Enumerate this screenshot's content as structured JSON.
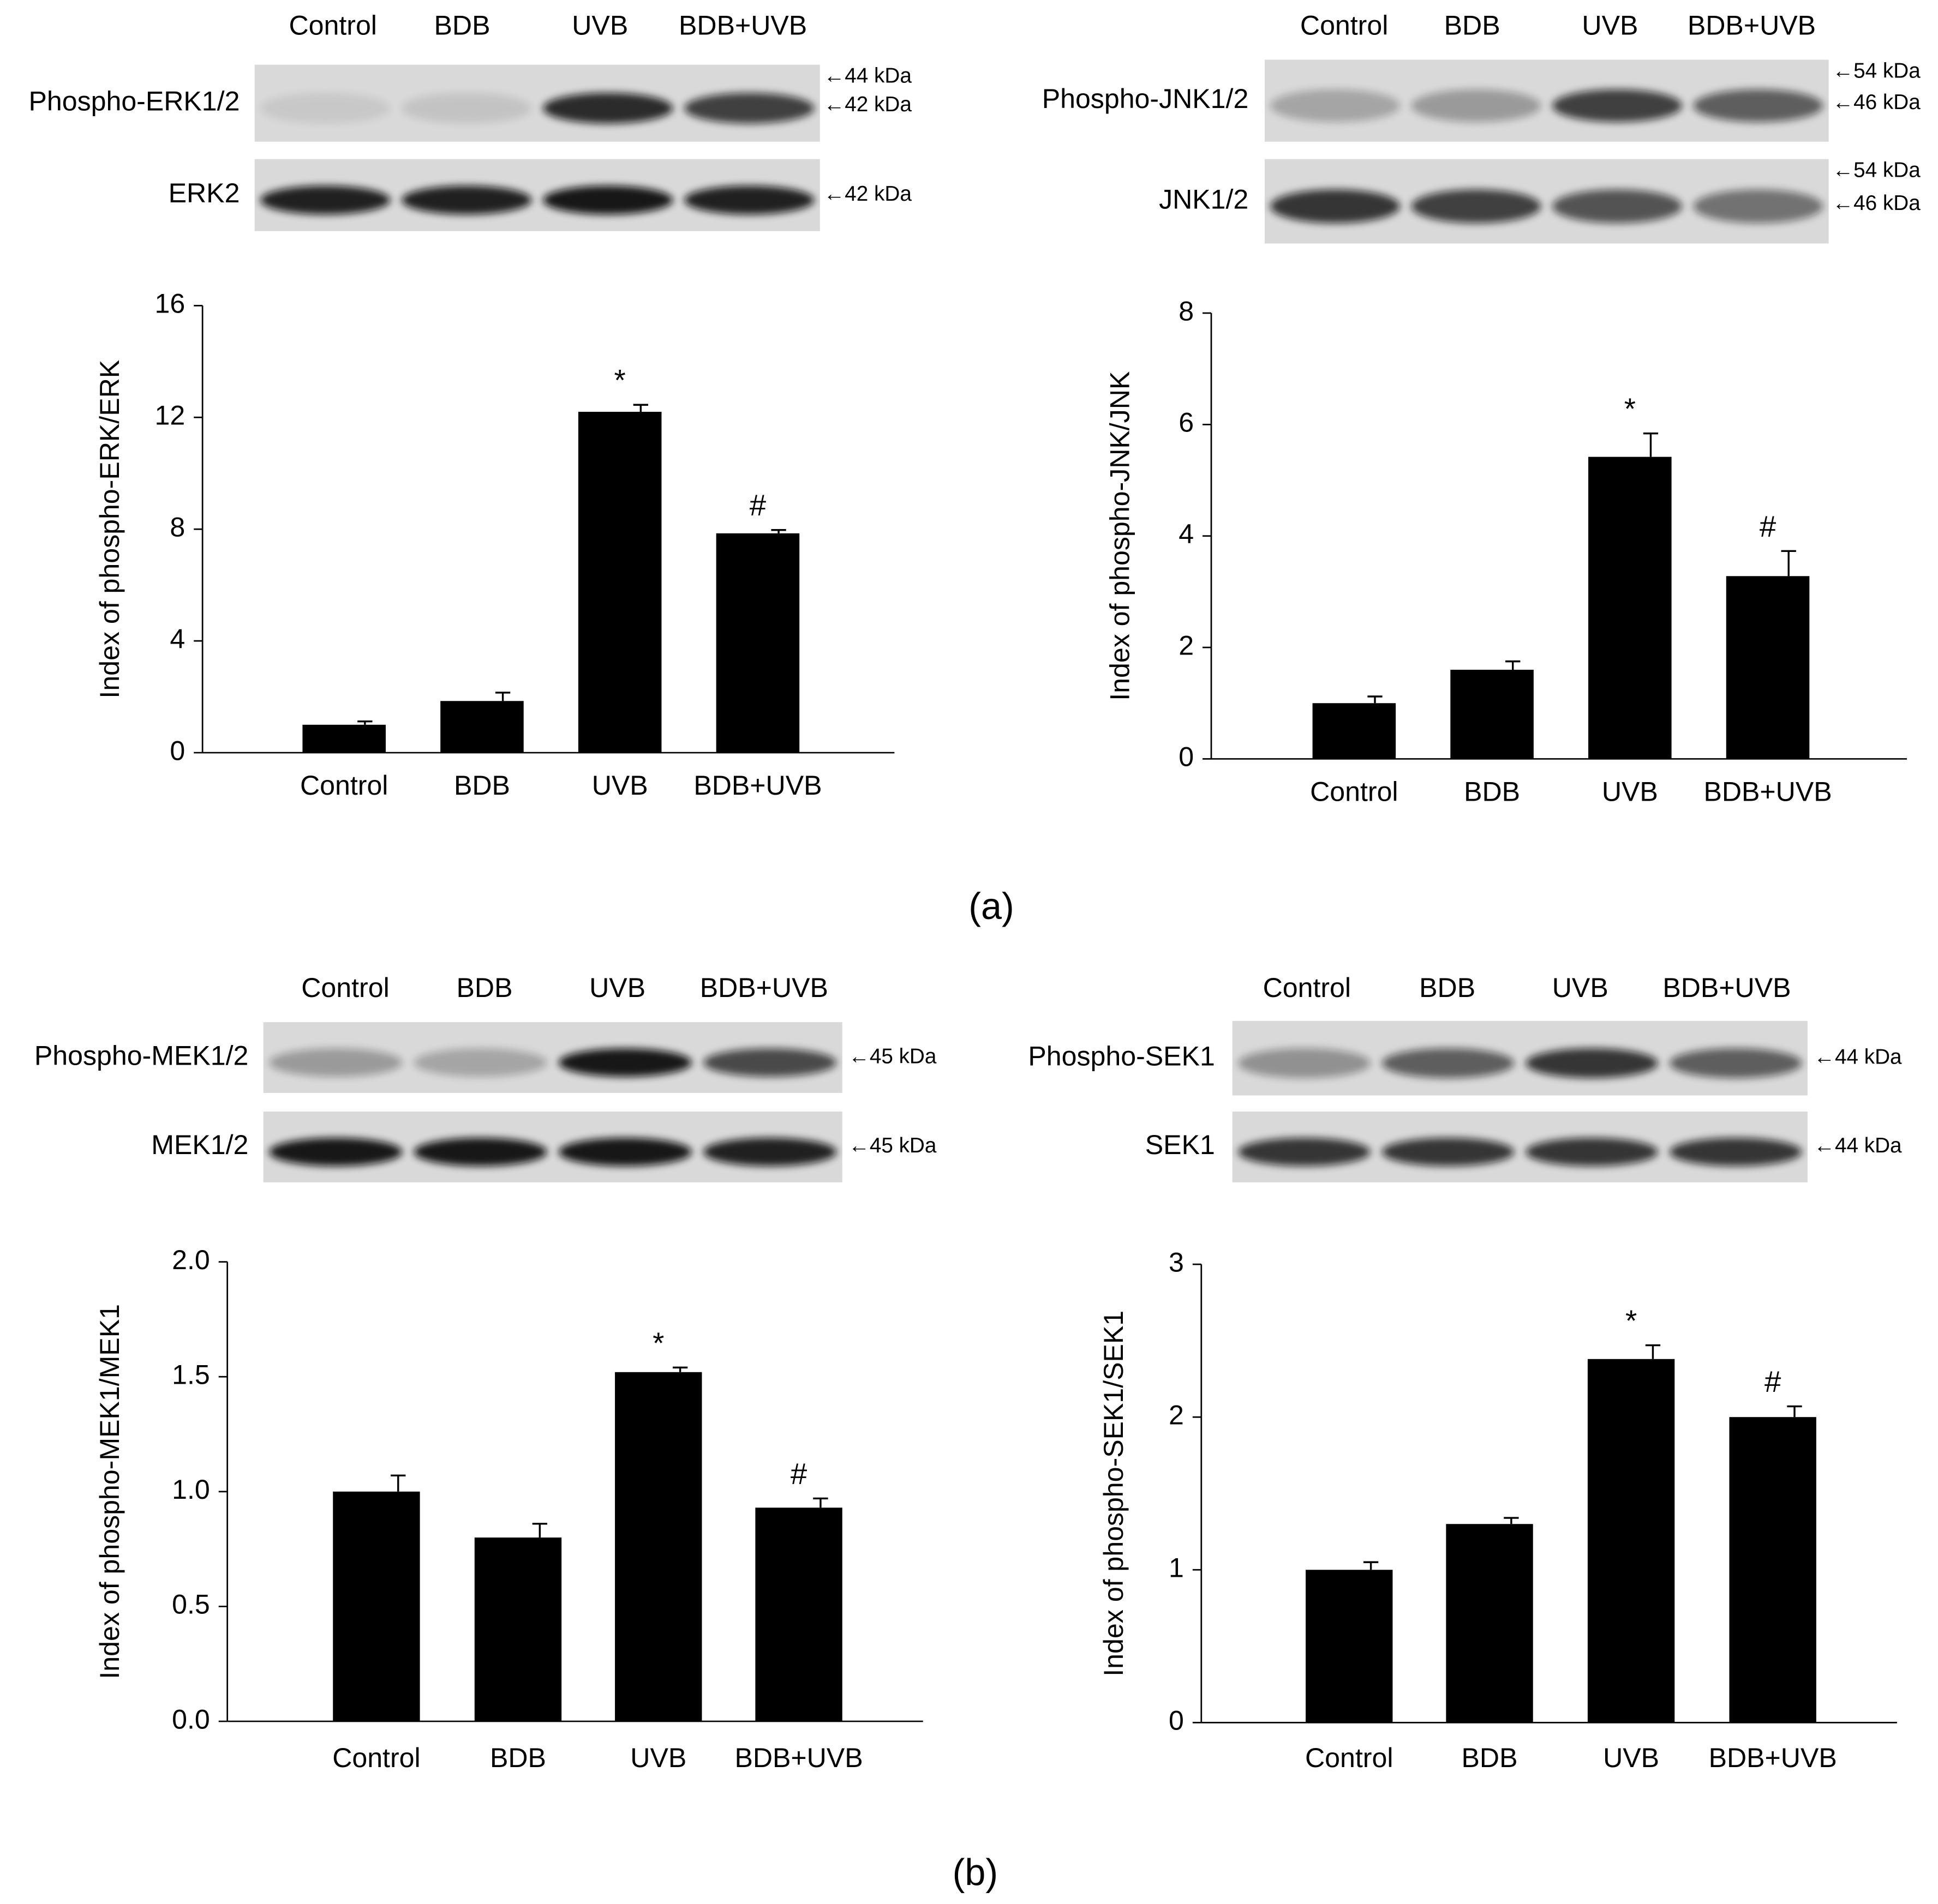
{
  "panel_labels": [
    "(a)",
    "(b)"
  ],
  "chart_data": [
    {
      "type": "bar",
      "ylabel": "Index of phospho-ERK/ERK",
      "categories": [
        "Control",
        "BDB",
        "UVB",
        "BDB+UVB"
      ],
      "values": [
        1.0,
        1.85,
        12.2,
        7.85
      ],
      "errors": [
        0.12,
        0.3,
        0.25,
        0.12
      ],
      "significance": [
        null,
        null,
        "*",
        "#"
      ],
      "color": "#000000",
      "ylim": [
        0,
        16
      ],
      "yticks": [
        0,
        4,
        8,
        12,
        16
      ],
      "blots": {
        "lanes": [
          "Control",
          "BDB",
          "UVB",
          "BDB+UVB"
        ],
        "rows": [
          {
            "label": "Phospho-ERK1/2",
            "markers": [
              "←44 kDa",
              "←42 kDa"
            ]
          },
          {
            "label": "ERK2",
            "markers": [
              "←42 kDa"
            ]
          }
        ]
      }
    },
    {
      "type": "bar",
      "ylabel": "Index of phospho-JNK/JNK",
      "categories": [
        "Control",
        "BDB",
        "UVB",
        "BDB+UVB"
      ],
      "values": [
        1.0,
        1.6,
        5.42,
        3.28
      ],
      "errors": [
        0.12,
        0.15,
        0.42,
        0.45
      ],
      "significance": [
        null,
        null,
        "*",
        "#"
      ],
      "color": "#000000",
      "ylim": [
        0,
        8
      ],
      "yticks": [
        0,
        2,
        4,
        6,
        8
      ],
      "blots": {
        "lanes": [
          "Control",
          "BDB",
          "UVB",
          "BDB+UVB"
        ],
        "rows": [
          {
            "label": "Phospho-JNK1/2",
            "markers": [
              "←54 kDa",
              "←46 kDa"
            ]
          },
          {
            "label": "JNK1/2",
            "markers": [
              "←54 kDa",
              "←46 kDa"
            ]
          }
        ]
      }
    },
    {
      "type": "bar",
      "ylabel": "Index of phospho-MEK1/MEK1",
      "categories": [
        "Control",
        "BDB",
        "UVB",
        "BDB+UVB"
      ],
      "values": [
        1.0,
        0.8,
        1.52,
        0.93
      ],
      "errors": [
        0.07,
        0.06,
        0.02,
        0.04
      ],
      "significance": [
        null,
        null,
        "*",
        "#"
      ],
      "color": "#000000",
      "ylim": [
        0,
        2
      ],
      "yticks": [
        {
          "value": 0,
          "label": "0.0"
        },
        {
          "value": 0.5,
          "label": "0.5"
        },
        {
          "value": 1,
          "label": "1.0"
        },
        {
          "value": 1.5,
          "label": "1.5"
        },
        {
          "value": 2,
          "label": "2.0"
        }
      ],
      "blots": {
        "lanes": [
          "Control",
          "BDB",
          "UVB",
          "BDB+UVB"
        ],
        "rows": [
          {
            "label": "Phospho-MEK1/2",
            "markers": [
              "←45 kDa"
            ]
          },
          {
            "label": "MEK1/2",
            "markers": [
              "←45 kDa"
            ]
          }
        ]
      }
    },
    {
      "type": "bar",
      "ylabel": "Index of phospho-SEK1/SEK1",
      "categories": [
        "Control",
        "BDB",
        "UVB",
        "BDB+UVB"
      ],
      "values": [
        1.0,
        1.3,
        2.38,
        2.0
      ],
      "errors": [
        0.05,
        0.04,
        0.09,
        0.07
      ],
      "significance": [
        null,
        null,
        "*",
        "#"
      ],
      "color": "#000000",
      "ylim": [
        0,
        3
      ],
      "yticks": [
        0,
        1,
        2,
        3
      ],
      "blots": {
        "lanes": [
          "Control",
          "BDB",
          "UVB",
          "BDB+UVB"
        ],
        "rows": [
          {
            "label": "Phospho-SEK1",
            "markers": [
              "←44 kDa"
            ]
          },
          {
            "label": "SEK1",
            "markers": [
              "←44 kDa"
            ]
          }
        ]
      }
    }
  ]
}
